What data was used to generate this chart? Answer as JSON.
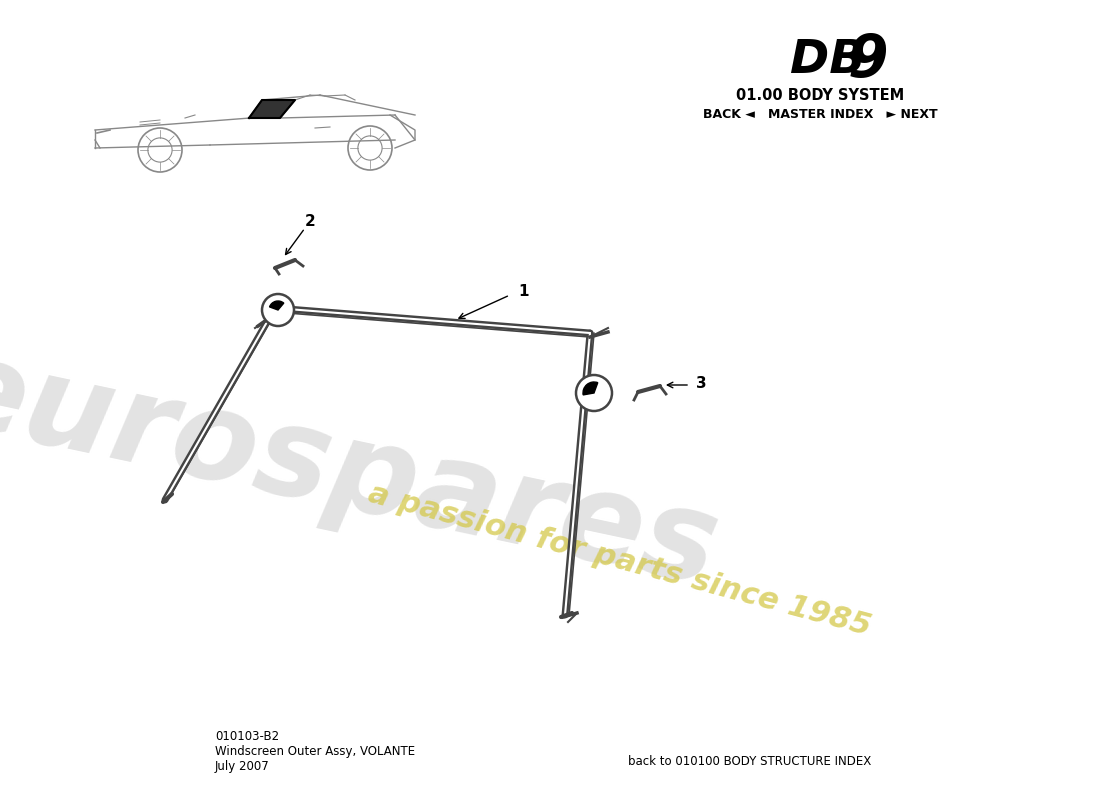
{
  "title_db": "DB",
  "title_9": "9",
  "title_system": "01.00 BODY SYSTEM",
  "nav_text": "BACK ◄   MASTER INDEX   ► NEXT",
  "part_number": "010103-B2",
  "part_name": "Windscreen Outer Assy, VOLANTE",
  "date": "July 2007",
  "back_link": "back to 010100 BODY STRUCTURE INDEX",
  "watermark_euro": "eurospares",
  "watermark_passion": "a passion for parts since 1985",
  "bg_color": "#ffffff",
  "frame_color": "#444444",
  "label_color": "#000000"
}
